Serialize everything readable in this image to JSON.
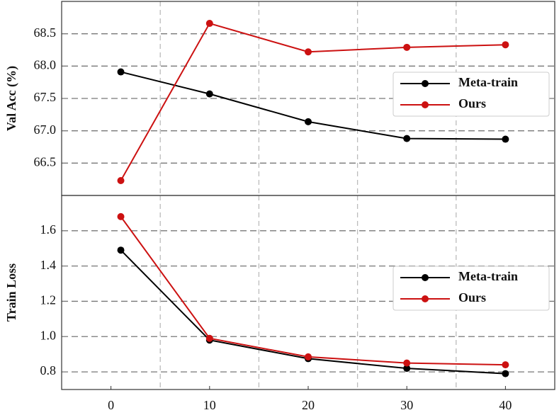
{
  "chart_data": [
    {
      "type": "line",
      "ylabel": "Val Acc (%)",
      "x": [
        1,
        10,
        20,
        30,
        40
      ],
      "xlim": [
        -5,
        45
      ],
      "xgrid": [
        5,
        15,
        25,
        35
      ],
      "ylim": [
        66.0,
        69.0
      ],
      "yticks": [
        {
          "value": 66.5,
          "label": "66.5"
        },
        {
          "value": 67,
          "label": "67.0"
        },
        {
          "value": 67.5,
          "label": "67.5"
        },
        {
          "value": 68,
          "label": "68.0"
        },
        {
          "value": 68.5,
          "label": "68.5"
        }
      ],
      "grid": true,
      "legend": "center right",
      "series": [
        {
          "name": "Meta-train",
          "color": "#000000",
          "values": [
            67.91,
            67.57,
            67.14,
            66.88,
            66.87
          ]
        },
        {
          "name": "Ours",
          "color": "#cc1111",
          "values": [
            66.23,
            68.66,
            68.22,
            68.29,
            68.33
          ]
        }
      ]
    },
    {
      "type": "line",
      "ylabel": "Train Loss",
      "x": [
        1,
        10,
        20,
        30,
        40
      ],
      "xlim": [
        -5,
        45
      ],
      "xgrid": [
        5,
        15,
        25,
        35
      ],
      "xticks": [
        0,
        10,
        20,
        30,
        40
      ],
      "ylim": [
        0.7,
        1.8
      ],
      "yticks": [
        0.8,
        {
          "value": 1,
          "label": "1.0"
        },
        1.2,
        1.4,
        1.6
      ],
      "grid": true,
      "legend": "center right",
      "series": [
        {
          "name": "Meta-train",
          "color": "#000000",
          "values": [
            1.49,
            0.98,
            0.875,
            0.82,
            0.79
          ]
        },
        {
          "name": "Ours",
          "color": "#cc1111",
          "values": [
            1.68,
            0.99,
            0.885,
            0.85,
            0.84
          ]
        }
      ]
    }
  ]
}
